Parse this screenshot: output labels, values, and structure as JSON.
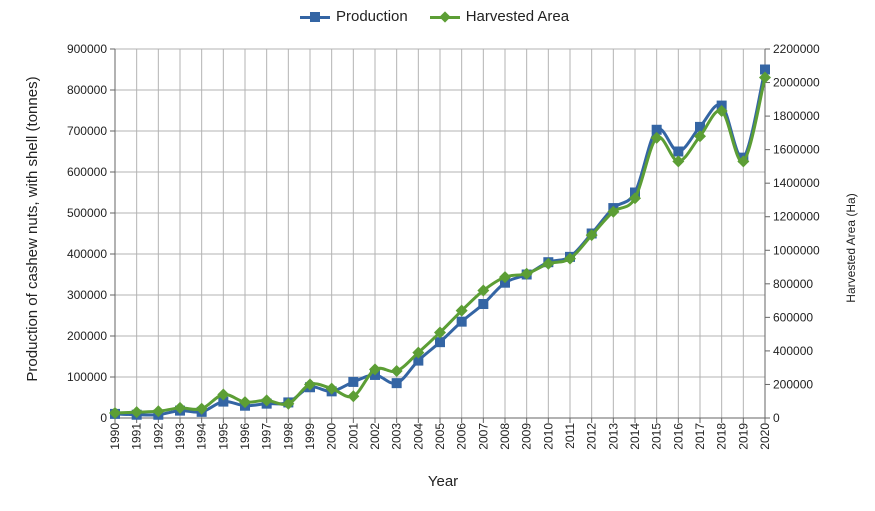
{
  "colors": {
    "production": "#3465a4",
    "area": "#5c9e35",
    "grid": "#b3b3b3",
    "axis": "#666666"
  },
  "legend": [
    {
      "name": "Production",
      "marker": "square"
    },
    {
      "name": "Harvested Area",
      "marker": "diamond"
    }
  ],
  "chart_data": {
    "type": "line",
    "title": "",
    "xlabel": "Year",
    "ylabel": "Production of cashew nuts, with shell (tonnes)",
    "y2label": "Harvested Area (Ha)",
    "ylim": [
      0,
      900000
    ],
    "y2lim": [
      0,
      2200000
    ],
    "yticks": [
      "0",
      "100000",
      "200000",
      "300000",
      "400000",
      "500000",
      "600000",
      "700000",
      "800000",
      "900000"
    ],
    "y2ticks": [
      "0",
      "200000",
      "400000",
      "600000",
      "800000",
      "1000000",
      "1200000",
      "1400000",
      "1600000",
      "1800000",
      "2000000",
      "2200000"
    ],
    "grid": true,
    "legend_position": "top-center",
    "x": [
      "1990",
      "1991",
      "1992",
      "1993",
      "1994",
      "1995",
      "1996",
      "1997",
      "1998",
      "1999",
      "2000",
      "2001",
      "2002",
      "2003",
      "2004",
      "2005",
      "2006",
      "2007",
      "2008",
      "2009",
      "2010",
      "2011",
      "2012",
      "2013",
      "2014",
      "2015",
      "2016",
      "2017",
      "2018",
      "2019",
      "2020"
    ],
    "series": [
      {
        "name": "Production",
        "axis": "left",
        "values": [
          10000,
          8000,
          8000,
          18000,
          15000,
          40000,
          30000,
          35000,
          38000,
          75000,
          65000,
          88000,
          105000,
          85000,
          140000,
          185000,
          235000,
          278000,
          330000,
          350000,
          380000,
          393000,
          450000,
          512000,
          550000,
          703000,
          650000,
          710000,
          762000,
          635000,
          850000
        ]
      },
      {
        "name": "Harvested Area",
        "axis": "right",
        "values": [
          30000,
          35000,
          40000,
          60000,
          55000,
          140000,
          95000,
          105000,
          85000,
          200000,
          175000,
          130000,
          290000,
          280000,
          390000,
          510000,
          640000,
          760000,
          840000,
          860000,
          920000,
          950000,
          1090000,
          1230000,
          1310000,
          1670000,
          1530000,
          1680000,
          1830000,
          1530000,
          2030000
        ]
      }
    ]
  }
}
